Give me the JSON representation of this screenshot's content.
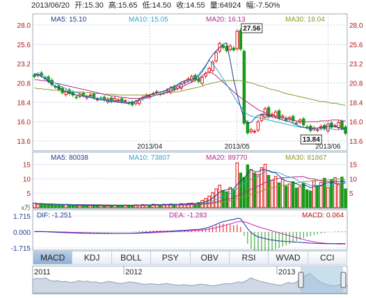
{
  "header": {
    "date": "2013/06/20",
    "open": "开:15.30",
    "high": "高:15.65",
    "low": "低:14.50",
    "close": "收:14.55",
    "volume": "量:64924",
    "change": "幅:-7.50%"
  },
  "chart_data": [
    {
      "type": "candlestick",
      "panel": "price",
      "ma_legend": [
        {
          "label": "MA5: 15.10",
          "color": "#1f3b8f"
        },
        {
          "label": "MA10: 15.05",
          "color": "#2aa8d0"
        },
        {
          "label": "MA20: 16.13",
          "color": "#b02a8a"
        },
        {
          "label": "MA30: 18.04",
          "color": "#8a9a2a"
        }
      ],
      "y_ticks": [
        "28.0",
        "25.6",
        "23.2",
        "20.8",
        "18.4",
        "16.0",
        "13.6"
      ],
      "ylim": [
        13.6,
        28.0
      ],
      "x_ticks": [
        "2013/04",
        "2013/05",
        "2013/06"
      ],
      "annotations": [
        {
          "text": "27.56",
          "value": 27.56
        },
        {
          "text": "13.84",
          "value": 13.84
        }
      ],
      "closes": [
        21.6,
        21.9,
        21.7,
        21.4,
        21.0,
        20.6,
        20.3,
        20.0,
        19.6,
        19.8,
        19.5,
        19.3,
        19.0,
        19.4,
        19.2,
        19.1,
        19.3,
        19.0,
        18.8,
        18.9,
        18.7,
        18.8,
        18.5,
        18.9,
        18.7,
        18.4,
        18.6,
        18.3,
        18.1,
        18.5,
        18.7,
        19.0,
        19.3,
        19.2,
        19.5,
        19.7,
        19.4,
        19.6,
        19.9,
        20.2,
        20.0,
        20.4,
        20.7,
        20.9,
        21.3,
        21.6,
        21.2,
        21.0,
        21.5,
        22.0,
        22.6,
        23.4,
        24.6,
        25.7,
        25.2,
        24.8,
        25.4,
        24.9,
        27.2,
        25.0,
        15.8,
        14.6,
        15.0,
        14.8,
        16.0,
        16.8,
        17.6,
        16.6,
        16.9,
        17.2,
        16.4,
        16.7,
        16.2,
        16.5,
        16.1,
        15.8,
        16.2,
        15.6,
        15.3,
        14.9,
        15.2,
        15.0,
        15.4,
        15.1,
        15.7,
        15.3,
        15.5,
        15.9,
        15.2,
        14.55
      ],
      "ma5": [
        21.9,
        21.8,
        21.6,
        21.4,
        21.0,
        20.7,
        20.4,
        20.2,
        19.9,
        19.7,
        19.6,
        19.4,
        19.3,
        19.2,
        19.2,
        19.1,
        19.0,
        18.9,
        18.8,
        18.7,
        18.7,
        18.6,
        18.5,
        18.5,
        18.4,
        18.4,
        18.3,
        18.3,
        18.4,
        18.5,
        18.8,
        19.0,
        19.2,
        19.3,
        19.5,
        19.6,
        19.7,
        19.8,
        20.0,
        20.2,
        20.4,
        20.6,
        20.9,
        21.1,
        21.2,
        21.3,
        21.4,
        21.7,
        22.2,
        22.9,
        23.7,
        24.3,
        24.8,
        25.2,
        25.6,
        25.8,
        23.6,
        21.2,
        19.4,
        17.8,
        16.4,
        15.8,
        15.9,
        16.4,
        16.8,
        16.9,
        16.9,
        16.8,
        16.6,
        16.5,
        16.4,
        16.2,
        16.1,
        16.0,
        15.8,
        15.6,
        15.4,
        15.3,
        15.2,
        15.2,
        15.2,
        15.2,
        15.3,
        15.3,
        15.4,
        15.5,
        15.4,
        15.3,
        15.1,
        15.1
      ],
      "ma10": [
        22.0,
        21.9,
        21.8,
        21.6,
        21.3,
        21.0,
        20.8,
        20.5,
        20.3,
        20.1,
        19.9,
        19.7,
        19.6,
        19.5,
        19.3,
        19.2,
        19.1,
        19.0,
        18.9,
        18.9,
        18.8,
        18.7,
        18.6,
        18.6,
        18.5,
        18.5,
        18.4,
        18.4,
        18.4,
        18.5,
        18.6,
        18.8,
        18.9,
        19.0,
        19.2,
        19.3,
        19.5,
        19.6,
        19.8,
        20.0,
        20.2,
        20.4,
        20.6,
        20.8,
        21.0,
        21.2,
        21.5,
        21.9,
        22.4,
        23.0,
        23.6,
        23.2,
        22.6,
        22.0,
        21.3,
        20.6,
        19.9,
        19.2,
        18.5,
        17.9,
        17.3,
        16.9,
        16.7,
        16.6,
        16.5,
        16.4,
        16.3,
        16.2,
        16.1,
        16.0,
        15.9,
        15.8,
        15.7,
        15.6,
        15.5,
        15.4,
        15.3,
        15.3,
        15.2,
        15.2,
        15.2,
        15.2,
        15.2,
        15.1,
        15.1,
        15.1,
        15.0,
        15.0,
        15.0,
        15.0
      ],
      "ma20": [
        21.2,
        21.2,
        21.1,
        21.1,
        21.0,
        20.9,
        20.8,
        20.7,
        20.6,
        20.5,
        20.4,
        20.3,
        20.2,
        20.1,
        20.0,
        19.9,
        19.8,
        19.7,
        19.6,
        19.5,
        19.4,
        19.3,
        19.2,
        19.2,
        19.1,
        19.0,
        19.0,
        18.9,
        18.9,
        18.9,
        18.9,
        19.0,
        19.0,
        19.1,
        19.2,
        19.3,
        19.4,
        19.5,
        19.6,
        19.8,
        19.9,
        20.1,
        20.3,
        20.5,
        20.7,
        20.9,
        21.1,
        21.4,
        21.7,
        22.0,
        22.2,
        22.0,
        21.7,
        21.3,
        20.9,
        20.5,
        20.1,
        19.7,
        19.3,
        19.0,
        18.7,
        18.4,
        18.1,
        17.8,
        17.5,
        17.3,
        17.1,
        16.9,
        16.8,
        16.7,
        16.6,
        16.5,
        16.4,
        16.3,
        16.2,
        16.1,
        16.0,
        16.0,
        16.0,
        16.0,
        16.0,
        16.0,
        16.1,
        16.1,
        16.1,
        16.2,
        16.2,
        16.2,
        16.1,
        16.1
      ],
      "ma30": [
        20.2,
        20.1,
        20.1,
        20.0,
        20.0,
        19.9,
        19.9,
        19.9,
        19.8,
        19.8,
        19.8,
        19.7,
        19.7,
        19.7,
        19.6,
        19.6,
        19.6,
        19.5,
        19.5,
        19.5,
        19.4,
        19.4,
        19.4,
        19.4,
        19.3,
        19.3,
        19.3,
        19.3,
        19.3,
        19.3,
        19.3,
        19.3,
        19.3,
        19.4,
        19.4,
        19.4,
        19.5,
        19.5,
        19.6,
        19.6,
        19.7,
        19.7,
        19.8,
        19.9,
        20.0,
        20.1,
        20.2,
        20.3,
        20.4,
        20.6,
        20.7,
        20.8,
        20.9,
        21.0,
        21.1,
        21.1,
        21.1,
        21.1,
        21.1,
        21.1,
        21.0,
        20.9,
        20.8,
        20.7,
        20.5,
        20.4,
        20.3,
        20.1,
        20.0,
        19.9,
        19.8,
        19.6,
        19.5,
        19.4,
        19.3,
        19.2,
        19.1,
        19.0,
        18.9,
        18.8,
        18.7,
        18.6,
        18.5,
        18.5,
        18.4,
        18.3,
        18.3,
        18.2,
        18.1,
        18.04
      ]
    },
    {
      "type": "bar",
      "panel": "volume",
      "ma_legend": [
        {
          "label": "MA5: 80038",
          "color": "#1f3b8f"
        },
        {
          "label": "MA10: 73807",
          "color": "#2aa8d0"
        },
        {
          "label": "MA20: 89770",
          "color": "#b02a8a"
        },
        {
          "label": "MA30: 81867",
          "color": "#8a9a2a"
        }
      ],
      "y_ticks": [
        "15",
        "10",
        "5"
      ],
      "unit": "x万",
      "ylim": [
        0,
        18
      ],
      "values": [
        1.6,
        1.2,
        1.4,
        1.1,
        1.0,
        1.3,
        0.9,
        1.0,
        0.8,
        1.1,
        0.9,
        0.8,
        1.0,
        0.7,
        0.9,
        0.8,
        0.7,
        0.9,
        0.8,
        0.7,
        0.8,
        0.6,
        0.7,
        0.9,
        0.8,
        0.7,
        0.9,
        0.8,
        0.7,
        1.0,
        0.9,
        1.1,
        1.0,
        0.9,
        1.2,
        1.1,
        1.0,
        1.2,
        1.1,
        1.3,
        1.2,
        1.0,
        1.4,
        1.3,
        1.5,
        1.6,
        1.4,
        1.8,
        2.5,
        3.2,
        4.0,
        5.2,
        6.5,
        7.8,
        6.0,
        5.5,
        7.0,
        6.2,
        15.5,
        12.0,
        10.5,
        14.8,
        13.2,
        12.0,
        11.5,
        13.8,
        15.0,
        11.2,
        9.5,
        10.8,
        8.6,
        9.8,
        7.5,
        8.2,
        9.0,
        6.8,
        7.2,
        8.5,
        6.2,
        5.8,
        9.2,
        7.6,
        8.8,
        10.2,
        7.0,
        9.6,
        10.4,
        8.0,
        10.6,
        6.5
      ]
    },
    {
      "type": "line",
      "panel": "macd",
      "labels": {
        "dif": "DIF: -1.251",
        "dea": "DEA: -1.283",
        "macd": "MACD: 0.064"
      },
      "y_ticks": [
        "1.715",
        "0.000",
        "-1.715"
      ],
      "ylim": [
        -1.715,
        1.715
      ],
      "dif": [
        0.05,
        0.06,
        0.05,
        0.04,
        0.02,
        0.0,
        -0.02,
        -0.04,
        -0.06,
        -0.07,
        -0.08,
        -0.1,
        -0.11,
        -0.12,
        -0.13,
        -0.13,
        -0.14,
        -0.14,
        -0.15,
        -0.15,
        -0.16,
        -0.16,
        -0.16,
        -0.15,
        -0.15,
        -0.15,
        -0.14,
        -0.14,
        -0.13,
        -0.11,
        -0.09,
        -0.07,
        -0.04,
        -0.02,
        0.01,
        0.03,
        0.05,
        0.06,
        0.08,
        0.1,
        0.12,
        0.14,
        0.16,
        0.18,
        0.21,
        0.24,
        0.26,
        0.28,
        0.33,
        0.42,
        0.52,
        0.66,
        0.82,
        1.0,
        1.12,
        1.2,
        1.3,
        1.34,
        1.48,
        1.42,
        0.9,
        0.35,
        -0.05,
        -0.34,
        -0.52,
        -0.62,
        -0.7,
        -0.8,
        -0.86,
        -0.9,
        -0.96,
        -0.98,
        -1.02,
        -1.04,
        -1.06,
        -1.09,
        -1.1,
        -1.13,
        -1.16,
        -1.19,
        -1.21,
        -1.23,
        -1.24,
        -1.25,
        -1.25,
        -1.25,
        -1.25,
        -1.24,
        -1.25,
        -1.251
      ],
      "dea": [
        0.04,
        0.04,
        0.04,
        0.04,
        0.04,
        0.03,
        0.02,
        0.01,
        0.0,
        -0.01,
        -0.03,
        -0.04,
        -0.05,
        -0.06,
        -0.08,
        -0.09,
        -0.1,
        -0.11,
        -0.11,
        -0.12,
        -0.13,
        -0.13,
        -0.14,
        -0.14,
        -0.14,
        -0.14,
        -0.14,
        -0.14,
        -0.14,
        -0.14,
        -0.13,
        -0.12,
        -0.11,
        -0.09,
        -0.07,
        -0.05,
        -0.03,
        -0.01,
        0.01,
        0.03,
        0.05,
        0.07,
        0.09,
        0.11,
        0.13,
        0.15,
        0.17,
        0.19,
        0.22,
        0.26,
        0.31,
        0.38,
        0.46,
        0.56,
        0.67,
        0.77,
        0.88,
        0.98,
        1.08,
        1.15,
        1.1,
        0.98,
        0.85,
        0.71,
        0.57,
        0.45,
        0.34,
        0.23,
        0.12,
        0.02,
        -0.1,
        -0.2,
        -0.3,
        -0.4,
        -0.5,
        -0.6,
        -0.7,
        -0.8,
        -0.9,
        -0.98,
        -1.05,
        -1.11,
        -1.16,
        -1.2,
        -1.23,
        -1.25,
        -1.27,
        -1.28,
        -1.28,
        -1.283
      ]
    },
    {
      "type": "area",
      "panel": "navigator",
      "x_ticks": [
        "2011",
        "2012",
        "2013"
      ],
      "values": [
        0.55,
        0.6,
        0.58,
        0.62,
        0.52,
        0.48,
        0.5,
        0.45,
        0.47,
        0.42,
        0.44,
        0.5,
        0.46,
        0.48,
        0.43,
        0.45,
        0.4,
        0.42,
        0.47,
        0.44,
        0.4,
        0.38,
        0.41,
        0.45,
        0.43,
        0.4,
        0.36,
        0.34,
        0.37,
        0.35,
        0.33,
        0.36,
        0.38,
        0.34,
        0.32,
        0.3,
        0.33,
        0.31,
        0.29,
        0.32,
        0.35,
        0.33,
        0.3,
        0.28,
        0.31,
        0.34,
        0.38,
        0.36,
        0.4,
        0.45,
        0.42,
        0.5,
        0.62,
        0.55,
        0.48,
        0.44,
        0.4,
        0.36,
        0.33,
        0.3,
        0.36,
        0.42,
        0.38,
        0.45,
        0.6,
        0.7,
        0.82,
        0.66,
        0.52,
        0.4,
        0.35,
        0.3,
        0.28,
        0.32,
        0.36,
        0.3
      ]
    }
  ],
  "tabs": [
    {
      "label": "MACD",
      "active": true
    },
    {
      "label": "KDJ",
      "active": false
    },
    {
      "label": "BOLL",
      "active": false
    },
    {
      "label": "PSY",
      "active": false
    },
    {
      "label": "OBV",
      "active": false
    },
    {
      "label": "RSI",
      "active": false
    },
    {
      "label": "WVAD",
      "active": false
    },
    {
      "label": "CCI",
      "active": false
    }
  ],
  "colors": {
    "up": "#e01010",
    "down": "#1a9a1a",
    "grid": "#c8d3e0",
    "axis_text_left": "#b01818",
    "axis_text_right": "#b01818",
    "nav_fill": "#cfd8e6",
    "nav_sel": "#9ec4de"
  }
}
